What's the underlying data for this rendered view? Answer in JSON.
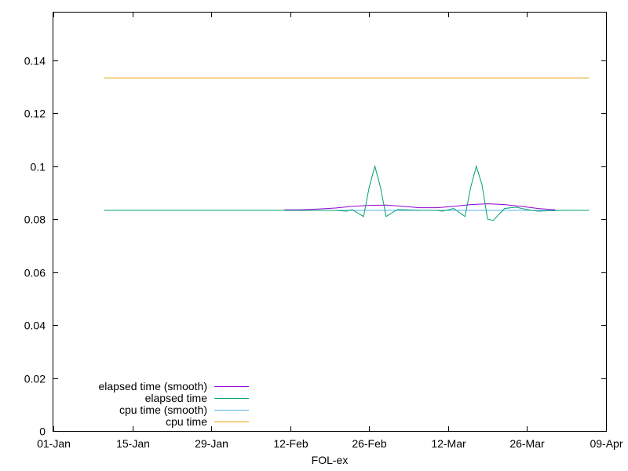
{
  "chart_data": {
    "type": "line",
    "title": "",
    "xlabel": "FOL-ex",
    "ylabel": "",
    "x_axis": {
      "type": "date",
      "range": [
        "2022-01-01",
        "2022-04-09"
      ],
      "ticks": [
        {
          "date": "2022-01-01",
          "label": "01-Jan"
        },
        {
          "date": "2022-01-15",
          "label": "15-Jan"
        },
        {
          "date": "2022-01-29",
          "label": "29-Jan"
        },
        {
          "date": "2022-02-12",
          "label": "12-Feb"
        },
        {
          "date": "2022-02-26",
          "label": "26-Feb"
        },
        {
          "date": "2022-03-12",
          "label": "12-Mar"
        },
        {
          "date": "2022-03-26",
          "label": "26-Mar"
        },
        {
          "date": "2022-04-09",
          "label": "09-Apr"
        }
      ]
    },
    "y_axis": {
      "range": [
        0,
        0.158
      ],
      "ticks": [
        {
          "value": 0,
          "label": "0"
        },
        {
          "value": 0.02,
          "label": "0.02"
        },
        {
          "value": 0.04,
          "label": "0.04"
        },
        {
          "value": 0.06,
          "label": "0.06"
        },
        {
          "value": 0.08,
          "label": "0.08"
        },
        {
          "value": 0.1,
          "label": "0.1"
        },
        {
          "value": 0.12,
          "label": "0.12"
        },
        {
          "value": 0.14,
          "label": "0.14"
        }
      ]
    },
    "grid": false,
    "legend_position": "bottom-left",
    "series": [
      {
        "name": "elapsed time (smooth)",
        "color": "#9400d3",
        "points": [
          [
            "2022-02-11",
            0.0835
          ],
          [
            "2022-02-14",
            0.0835
          ],
          [
            "2022-02-17",
            0.0838
          ],
          [
            "2022-02-20",
            0.0842
          ],
          [
            "2022-02-23",
            0.0848
          ],
          [
            "2022-02-26",
            0.0852
          ],
          [
            "2022-03-01",
            0.0853
          ],
          [
            "2022-03-04",
            0.0848
          ],
          [
            "2022-03-07",
            0.0843
          ],
          [
            "2022-03-10",
            0.0843
          ],
          [
            "2022-03-13",
            0.0848
          ],
          [
            "2022-03-16",
            0.0855
          ],
          [
            "2022-03-19",
            0.0858
          ],
          [
            "2022-03-22",
            0.0855
          ],
          [
            "2022-03-25",
            0.0848
          ],
          [
            "2022-03-28",
            0.084
          ],
          [
            "2022-03-31",
            0.0835
          ]
        ]
      },
      {
        "name": "elapsed time",
        "color": "#009e73",
        "points": [
          [
            "2022-01-10",
            0.0833
          ],
          [
            "2022-02-01",
            0.0833
          ],
          [
            "2022-02-20",
            0.0833
          ],
          [
            "2022-02-22",
            0.083
          ],
          [
            "2022-02-23",
            0.0836
          ],
          [
            "2022-02-25",
            0.081
          ],
          [
            "2022-02-26",
            0.092
          ],
          [
            "2022-02-27",
            0.1
          ],
          [
            "2022-02-28",
            0.092
          ],
          [
            "2022-03-01",
            0.081
          ],
          [
            "2022-03-03",
            0.0836
          ],
          [
            "2022-03-07",
            0.0833
          ],
          [
            "2022-03-10",
            0.0833
          ],
          [
            "2022-03-11",
            0.083
          ],
          [
            "2022-03-13",
            0.084
          ],
          [
            "2022-03-15",
            0.081
          ],
          [
            "2022-03-16",
            0.092
          ],
          [
            "2022-03-17",
            0.1
          ],
          [
            "2022-03-18",
            0.093
          ],
          [
            "2022-03-19",
            0.08
          ],
          [
            "2022-03-20",
            0.0795
          ],
          [
            "2022-03-22",
            0.084
          ],
          [
            "2022-03-24",
            0.0845
          ],
          [
            "2022-03-26",
            0.0836
          ],
          [
            "2022-03-28",
            0.083
          ],
          [
            "2022-04-01",
            0.0833
          ],
          [
            "2022-04-06",
            0.0833
          ]
        ]
      },
      {
        "name": "cpu time (smooth)",
        "color": "#56b4e9",
        "points": [
          [
            "2022-01-10",
            0.0833
          ],
          [
            "2022-04-06",
            0.0833
          ]
        ]
      },
      {
        "name": "cpu time",
        "color": "#e69f00",
        "points": [
          [
            "2022-01-10",
            0.1333
          ],
          [
            "2022-04-06",
            0.1333
          ]
        ]
      }
    ]
  }
}
